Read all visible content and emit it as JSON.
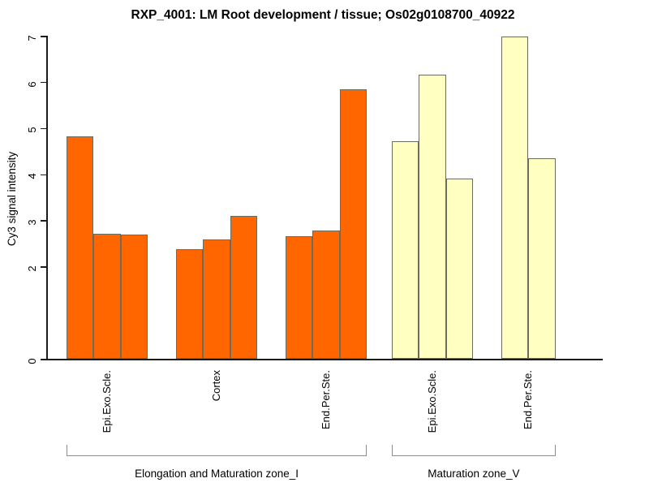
{
  "title": "RXP_4001: LM Root development / tissue; Os02g0108700_40922",
  "chart_data": {
    "type": "bar",
    "title": "RXP_4001: LM Root development / tissue; Os02g0108700_40922",
    "xlabel": "",
    "ylabel": "Cy3 signal intensity",
    "ylim": [
      0,
      7
    ],
    "yticks": [
      0,
      2,
      3,
      4,
      5,
      6,
      7
    ],
    "grid": false,
    "legend": "none",
    "bar_border_color": "#6b6b60",
    "axis_color": "#1a1a1a",
    "bracket_color": "#8c8c8c",
    "groups": [
      {
        "tissue": "Epi.Exo.Scle.",
        "zone": "Elongation and Maturation zone_I",
        "fill": "#FF6600",
        "values": [
          4.82,
          2.7,
          2.69
        ]
      },
      {
        "tissue": "Cortex",
        "zone": "Elongation and Maturation zone_I",
        "fill": "#FF6600",
        "values": [
          2.38,
          2.59,
          3.09
        ]
      },
      {
        "tissue": "End.Per.Ste.",
        "zone": "Elongation and Maturation zone_I",
        "fill": "#FF6600",
        "values": [
          2.66,
          2.78,
          5.84
        ]
      },
      {
        "tissue": "Epi.Exo.Scle.",
        "zone": "Maturation zone_V",
        "fill": "#FFFFC2",
        "values": [
          4.71,
          6.15,
          3.9
        ]
      },
      {
        "tissue": "End.Per.Ste.",
        "zone": "Maturation zone_V",
        "fill": "#FFFFC2",
        "values": [
          6.99,
          4.34
        ]
      }
    ],
    "zones": [
      {
        "label": "Elongation and Maturation zone_I",
        "group_indices": [
          0,
          1,
          2
        ]
      },
      {
        "label": "Maturation zone_V",
        "group_indices": [
          3,
          4
        ]
      }
    ]
  }
}
